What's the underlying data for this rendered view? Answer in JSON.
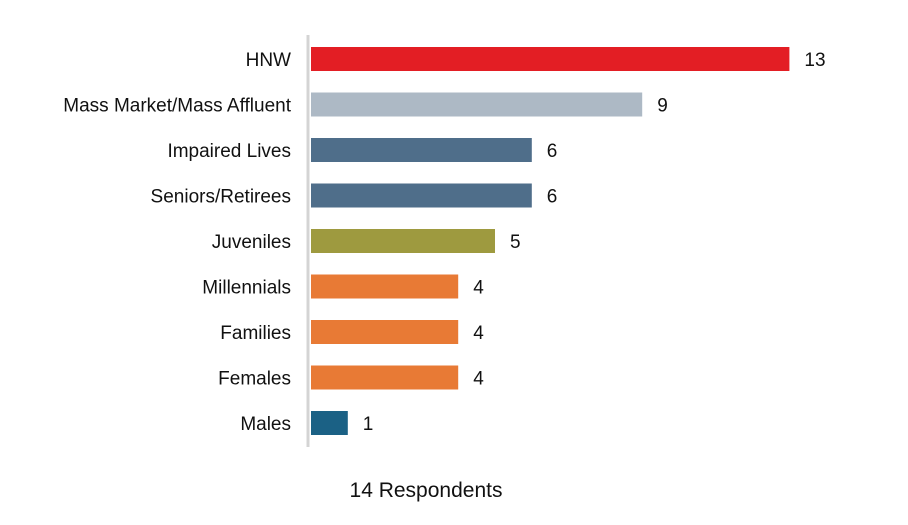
{
  "chart_data": {
    "type": "bar",
    "orientation": "horizontal",
    "categories": [
      "HNW",
      "Mass Market/Mass Affluent",
      "Impaired Lives",
      "Seniors/Retirees",
      "Juveniles",
      "Millennials",
      "Families",
      "Females",
      "Males"
    ],
    "values": [
      13,
      9,
      6,
      6,
      5,
      4,
      4,
      4,
      1
    ],
    "bar_colors": [
      "#e31e24",
      "#adb9c5",
      "#4f6e8a",
      "#4f6e8a",
      "#9e9a3f",
      "#e87a35",
      "#e87a35",
      "#e87a35",
      "#1b6185"
    ],
    "axis_color": "#d4d4d4",
    "footnote": "14 Respondents",
    "grid": false,
    "legend": "none"
  }
}
